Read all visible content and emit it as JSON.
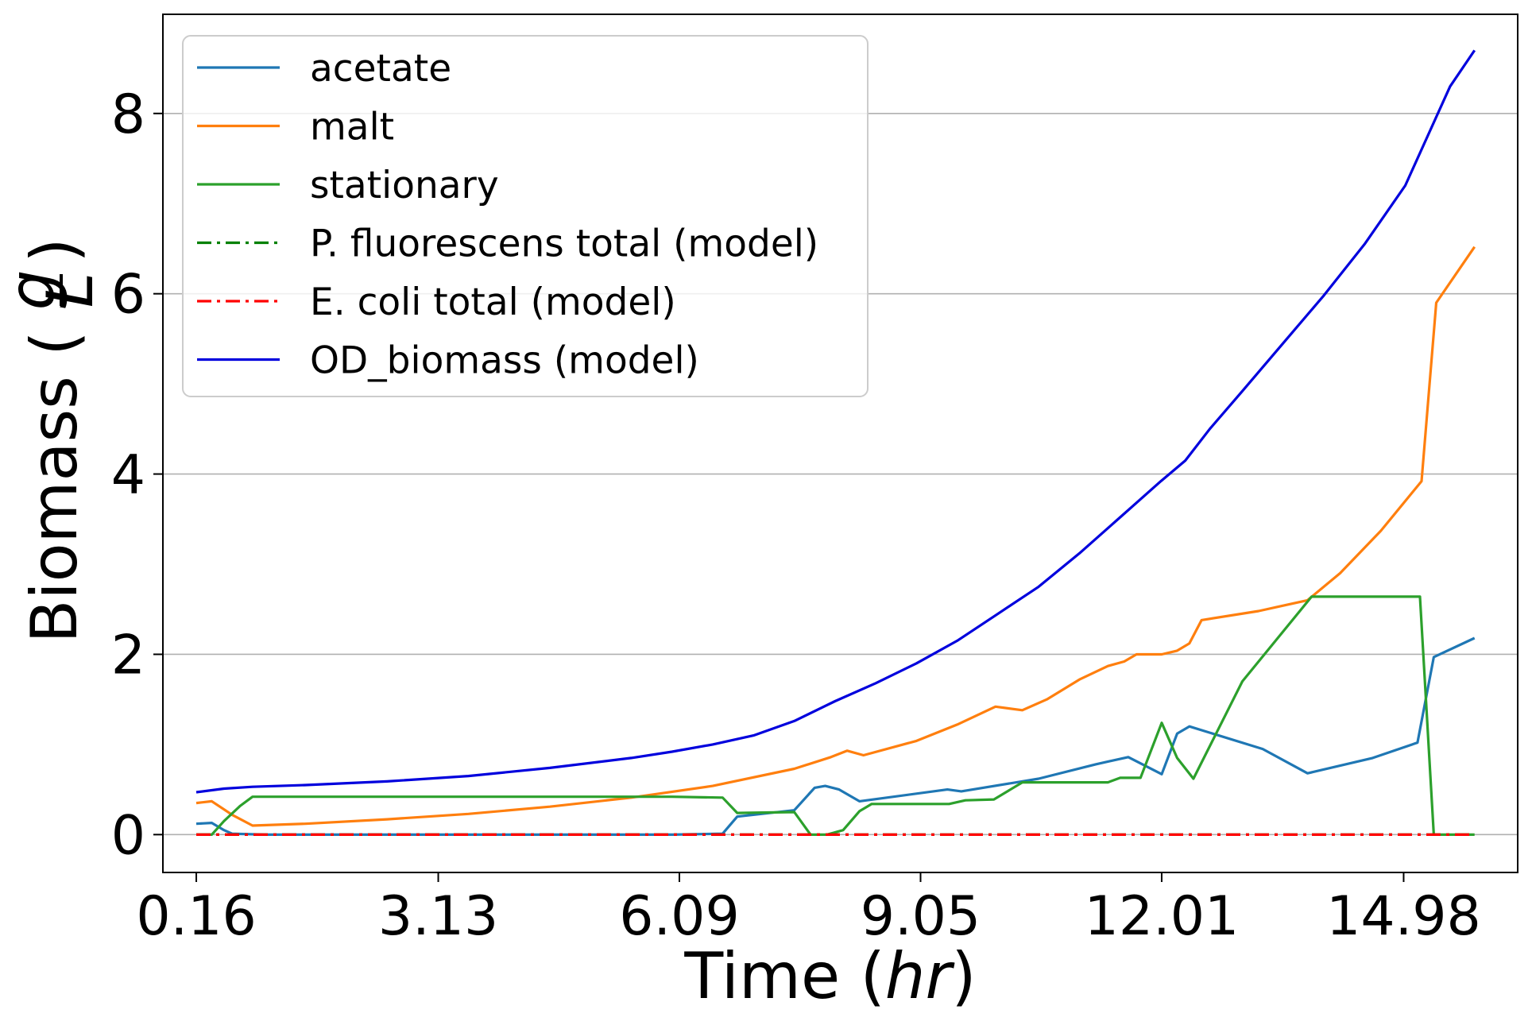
{
  "chart_data": {
    "type": "line",
    "title": "",
    "xlabel": {
      "prefix": "Time (",
      "var": "hr",
      "suffix": ")"
    },
    "ylabel": {
      "prefix": "Biomass (",
      "num": "g",
      "den": "L",
      "suffix": ")"
    },
    "xlim": [
      -0.25,
      16.38
    ],
    "ylim": [
      -0.42,
      9.1
    ],
    "xticks": [
      0.16,
      3.13,
      6.09,
      9.05,
      12.01,
      14.98
    ],
    "xtick_labels": [
      "0.16",
      "3.13",
      "6.09",
      "9.05",
      "12.01",
      "14.98"
    ],
    "yticks": [
      0,
      2,
      4,
      6,
      8
    ],
    "ytick_labels": [
      "0",
      "2",
      "4",
      "6",
      "8"
    ],
    "grid": "y",
    "legend_position": "upper-left",
    "series": [
      {
        "name": "acetate",
        "color": "#1f77b4",
        "style": "solid",
        "points": [
          [
            0.16,
            0.12
          ],
          [
            0.35,
            0.13
          ],
          [
            0.5,
            0.05
          ],
          [
            0.6,
            0.01
          ],
          [
            1.0,
            0.0
          ],
          [
            6.0,
            0.0
          ],
          [
            6.62,
            0.01
          ],
          [
            6.8,
            0.2
          ],
          [
            7.5,
            0.27
          ],
          [
            7.75,
            0.52
          ],
          [
            7.88,
            0.54
          ],
          [
            8.05,
            0.5
          ],
          [
            8.3,
            0.37
          ],
          [
            9.38,
            0.5
          ],
          [
            9.55,
            0.48
          ],
          [
            10.5,
            0.62
          ],
          [
            11.2,
            0.78
          ],
          [
            11.6,
            0.86
          ],
          [
            12.01,
            0.67
          ],
          [
            12.2,
            1.12
          ],
          [
            12.35,
            1.2
          ],
          [
            13.25,
            0.95
          ],
          [
            13.8,
            0.68
          ],
          [
            14.6,
            0.85
          ],
          [
            15.15,
            1.02
          ],
          [
            15.35,
            1.97
          ],
          [
            15.85,
            2.18
          ]
        ]
      },
      {
        "name": "malt",
        "color": "#ff7f0e",
        "style": "solid",
        "points": [
          [
            0.16,
            0.35
          ],
          [
            0.35,
            0.37
          ],
          [
            0.6,
            0.22
          ],
          [
            0.85,
            0.1
          ],
          [
            1.5,
            0.12
          ],
          [
            2.5,
            0.17
          ],
          [
            3.5,
            0.23
          ],
          [
            4.5,
            0.31
          ],
          [
            5.5,
            0.41
          ],
          [
            6.5,
            0.54
          ],
          [
            7.5,
            0.73
          ],
          [
            7.95,
            0.86
          ],
          [
            8.15,
            0.93
          ],
          [
            8.35,
            0.88
          ],
          [
            9.0,
            1.04
          ],
          [
            9.5,
            1.22
          ],
          [
            9.97,
            1.42
          ],
          [
            10.3,
            1.38
          ],
          [
            10.6,
            1.5
          ],
          [
            11.0,
            1.72
          ],
          [
            11.35,
            1.87
          ],
          [
            11.55,
            1.92
          ],
          [
            11.7,
            2.0
          ],
          [
            12.01,
            2.0
          ],
          [
            12.2,
            2.04
          ],
          [
            12.35,
            2.12
          ],
          [
            12.5,
            2.38
          ],
          [
            13.2,
            2.48
          ],
          [
            13.8,
            2.6
          ],
          [
            14.2,
            2.9
          ],
          [
            14.7,
            3.37
          ],
          [
            15.2,
            3.92
          ],
          [
            15.38,
            5.9
          ],
          [
            15.85,
            6.52
          ]
        ]
      },
      {
        "name": "stationary",
        "color": "#2ca02c",
        "style": "solid",
        "points": [
          [
            0.16,
            0.0
          ],
          [
            0.35,
            0.0
          ],
          [
            0.5,
            0.15
          ],
          [
            0.7,
            0.32
          ],
          [
            0.85,
            0.42
          ],
          [
            6.0,
            0.42
          ],
          [
            6.62,
            0.41
          ],
          [
            6.8,
            0.24
          ],
          [
            7.5,
            0.25
          ],
          [
            7.7,
            0.0
          ],
          [
            7.9,
            0.0
          ],
          [
            8.1,
            0.05
          ],
          [
            8.3,
            0.26
          ],
          [
            8.45,
            0.34
          ],
          [
            9.4,
            0.34
          ],
          [
            9.6,
            0.38
          ],
          [
            9.95,
            0.39
          ],
          [
            10.3,
            0.58
          ],
          [
            11.35,
            0.58
          ],
          [
            11.5,
            0.63
          ],
          [
            11.75,
            0.63
          ],
          [
            12.01,
            1.24
          ],
          [
            12.2,
            0.85
          ],
          [
            12.4,
            0.62
          ],
          [
            13.0,
            1.7
          ],
          [
            13.85,
            2.64
          ],
          [
            15.18,
            2.64
          ],
          [
            15.35,
            0.0
          ],
          [
            15.85,
            0.0
          ]
        ]
      },
      {
        "name": "P. fluorescens total (model)",
        "color": "#008000",
        "style": "dashdot",
        "points": [
          [
            0.16,
            0.0
          ],
          [
            15.85,
            0.0
          ]
        ]
      },
      {
        "name": "E. coli total (model)",
        "color": "#ff0000",
        "style": "dashdot",
        "points": [
          [
            0.16,
            0.0
          ],
          [
            15.85,
            0.0
          ]
        ]
      },
      {
        "name": "OD_biomass (model)",
        "color": "#0000dd",
        "style": "solid",
        "points": [
          [
            0.16,
            0.47
          ],
          [
            0.5,
            0.51
          ],
          [
            0.85,
            0.53
          ],
          [
            1.5,
            0.55
          ],
          [
            2.5,
            0.59
          ],
          [
            3.5,
            0.65
          ],
          [
            4.5,
            0.74
          ],
          [
            5.5,
            0.85
          ],
          [
            6.0,
            0.92
          ],
          [
            6.5,
            1.0
          ],
          [
            7.0,
            1.1
          ],
          [
            7.5,
            1.26
          ],
          [
            8.0,
            1.48
          ],
          [
            8.5,
            1.68
          ],
          [
            9.0,
            1.9
          ],
          [
            9.5,
            2.15
          ],
          [
            10.0,
            2.45
          ],
          [
            10.5,
            2.75
          ],
          [
            11.0,
            3.12
          ],
          [
            11.5,
            3.52
          ],
          [
            12.0,
            3.92
          ],
          [
            12.3,
            4.15
          ],
          [
            12.6,
            4.5
          ],
          [
            13.0,
            4.92
          ],
          [
            13.5,
            5.45
          ],
          [
            14.0,
            5.98
          ],
          [
            14.5,
            6.55
          ],
          [
            15.0,
            7.2
          ],
          [
            15.35,
            7.9
          ],
          [
            15.55,
            8.3
          ],
          [
            15.85,
            8.7
          ]
        ]
      }
    ]
  }
}
